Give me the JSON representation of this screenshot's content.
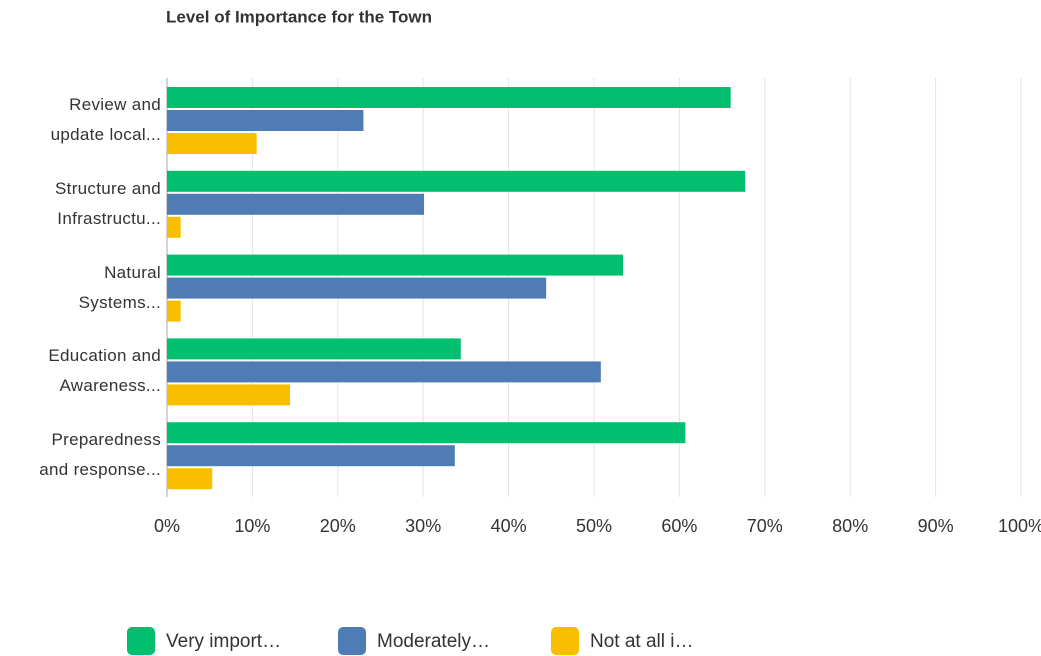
{
  "chart_data": {
    "type": "hbar",
    "title": "Level of Importance for the Town",
    "categories": [
      "Review and\nupdate local...",
      "Structure and\nInfrastructu...",
      "Natural\nSystems...",
      "Education and\nAwareness...",
      "Preparedness\nand response..."
    ],
    "series": [
      {
        "name": "Very import…",
        "color": "#00bf6f",
        "values": [
          66,
          67.7,
          53.4,
          34.4,
          60.7
        ]
      },
      {
        "name": "Moderately…",
        "color": "#507cb6",
        "values": [
          23,
          30.1,
          44.4,
          50.8,
          33.7
        ]
      },
      {
        "name": "Not at all i…",
        "color": "#f9be00",
        "values": [
          10.5,
          1.6,
          1.6,
          14.4,
          5.3
        ]
      }
    ],
    "xlim": [
      0,
      100
    ],
    "xticks": [
      {
        "value": 0,
        "label": "0%"
      },
      {
        "value": 10,
        "label": "10%"
      },
      {
        "value": 20,
        "label": "20%"
      },
      {
        "value": 30,
        "label": "30%"
      },
      {
        "value": 40,
        "label": "40%"
      },
      {
        "value": 50,
        "label": "50%"
      },
      {
        "value": 60,
        "label": "60%"
      },
      {
        "value": 70,
        "label": "70%"
      },
      {
        "value": 80,
        "label": "80%"
      },
      {
        "value": 90,
        "label": "90%"
      },
      {
        "value": 100,
        "label": "100%"
      }
    ],
    "grid": true,
    "legend": "bottom"
  }
}
